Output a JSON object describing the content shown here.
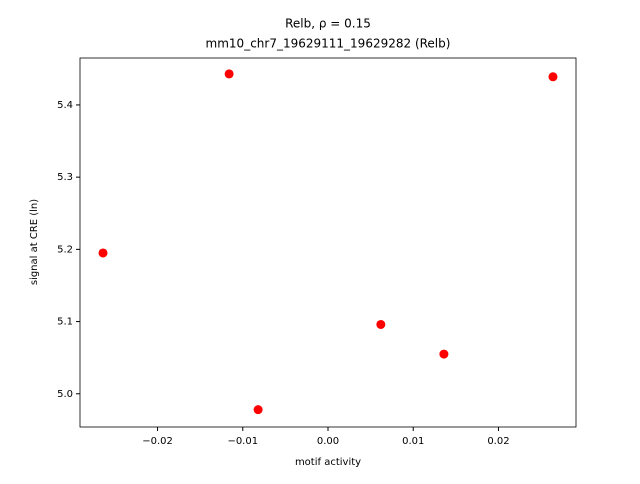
{
  "chart_data": {
    "type": "scatter",
    "title": "Relb, ρ = 0.15",
    "subtitle": "mm10_chr7_19629111_19629282 (Relb)",
    "x_label": "motif activity",
    "y_label": "signal at CRE (ln)",
    "color": "#ff0000",
    "x": [
      -0.0264,
      -0.0116,
      -0.0082,
      0.0062,
      0.0136,
      0.0264
    ],
    "values": [
      5.195,
      5.443,
      4.978,
      5.096,
      5.055,
      5.439
    ],
    "xlim": [
      -0.0291,
      0.0291
    ],
    "ylim": [
      4.954,
      5.465
    ],
    "xticks": [
      {
        "value": -0.02,
        "label": "−0.02"
      },
      {
        "value": -0.01,
        "label": "−0.01"
      },
      {
        "value": 0,
        "label": "0.00"
      },
      0.01,
      0.02
    ],
    "yticks": [
      {
        "value": 5,
        "label": "5.0"
      },
      5.1,
      5.2,
      5.3,
      5.4
    ]
  }
}
